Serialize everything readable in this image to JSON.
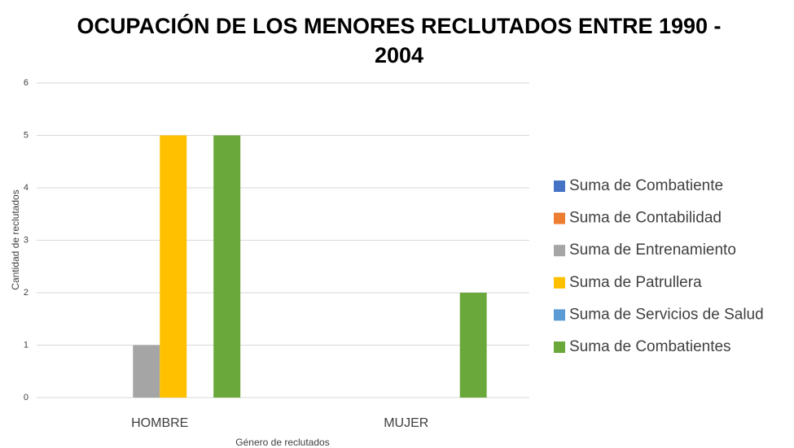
{
  "chart_data": {
    "type": "bar",
    "title": "OCUPACIÓN DE LOS MENORES RECLUTADOS ENTRE 1990 - 2004",
    "x_label": "Género de reclutados",
    "y_label": "Cantidad de reclutados",
    "categories": [
      "HOMBRE",
      "MUJER"
    ],
    "series": [
      {
        "name": "Suma de Combatiente",
        "color": "#4472c4",
        "values": [
          0,
          0
        ]
      },
      {
        "name": "Suma de Contabilidad",
        "color": "#ed7d31",
        "values": [
          0,
          0
        ]
      },
      {
        "name": "Suma de Entrenamiento",
        "color": "#a5a5a5",
        "values": [
          1,
          0
        ]
      },
      {
        "name": "Suma de Patrullera",
        "color": "#ffc000",
        "values": [
          5,
          0
        ]
      },
      {
        "name": "Suma de Servicios de Salud",
        "color": "#5b9bd5",
        "values": [
          0,
          0
        ]
      },
      {
        "name": "Suma de Combatientes",
        "color": "#6aa83b",
        "values": [
          5,
          2
        ]
      }
    ],
    "ylim": [
      0,
      6
    ],
    "yticks": [
      0,
      1,
      2,
      3,
      4,
      5,
      6
    ],
    "grid": true,
    "legend": "right"
  }
}
